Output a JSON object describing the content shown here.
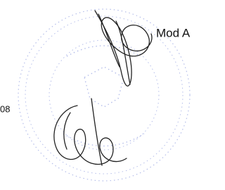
{
  "document": {
    "label": "Mod A",
    "number": "08"
  }
}
